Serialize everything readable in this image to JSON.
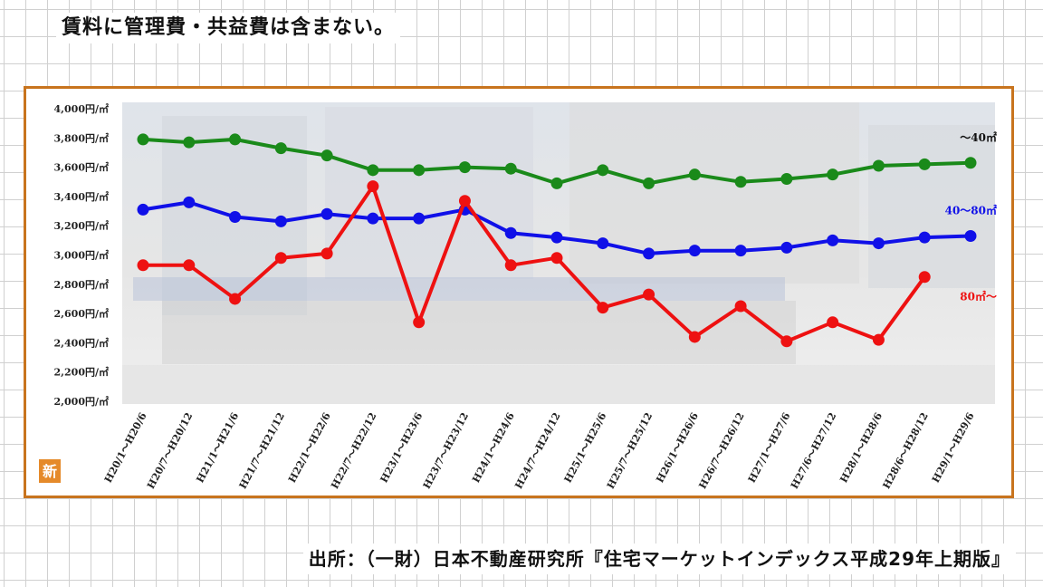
{
  "header_note": "賃料に管理費・共益費は含まない。",
  "source_note": "出所：（一財）日本不動産研究所『住宅マーケットインデックス平成29年上期版』",
  "badge_text": "新",
  "chart_data": {
    "type": "line",
    "categories": [
      "H20/1～H20/6",
      "H20/7～H20/12",
      "H21/1～H21/6",
      "H21/7～H21/12",
      "H22/1～H22/6",
      "H22/7～H22/12",
      "H23/1～H23/6",
      "H23/7～H23/12",
      "H24/1～H24/6",
      "H24/7～H24/12",
      "H25/1～H25/6",
      "H25/7～H25/12",
      "H26/1～H26/6",
      "H26/7～H26/12",
      "H27/1～H27/6",
      "H27/6～H27/12",
      "H28/1～H28/6",
      "H28/6～H28/12",
      "H29/1～H29/6"
    ],
    "ylim": [
      2000,
      4000
    ],
    "ytick_values": [
      2000,
      2200,
      2400,
      2600,
      2800,
      3000,
      3200,
      3400,
      3600,
      3800,
      4000
    ],
    "ytick_labels": [
      "2,000円/㎡",
      "2,200円/㎡",
      "2,400円/㎡",
      "2,600円/㎡",
      "2,800円/㎡",
      "3,000円/㎡",
      "3,200円/㎡",
      "3,400円/㎡",
      "3,600円/㎡",
      "3,800円/㎡",
      "4,000円/㎡"
    ],
    "series": [
      {
        "name": "～40㎡",
        "color": "#1a8a1a",
        "values": [
          3790,
          3770,
          3790,
          3730,
          3680,
          3580,
          3580,
          3600,
          3590,
          3490,
          3580,
          3490,
          3550,
          3500,
          3520,
          3550,
          3610,
          3620,
          3630
        ]
      },
      {
        "name": "40～80㎡",
        "color": "#1010e8",
        "values": [
          3310,
          3360,
          3260,
          3230,
          3280,
          3250,
          3250,
          3310,
          3150,
          3120,
          3080,
          3010,
          3030,
          3030,
          3050,
          3100,
          3080,
          3120,
          3130
        ]
      },
      {
        "name": "80㎡～",
        "color": "#ee1111",
        "values": [
          2930,
          2930,
          2700,
          2980,
          3010,
          3470,
          2540,
          3370,
          2930,
          2980,
          2640,
          2730,
          2440,
          2650,
          2410,
          2540,
          2420,
          2850,
          null
        ]
      }
    ],
    "grid": false,
    "legend": "inline-right"
  }
}
